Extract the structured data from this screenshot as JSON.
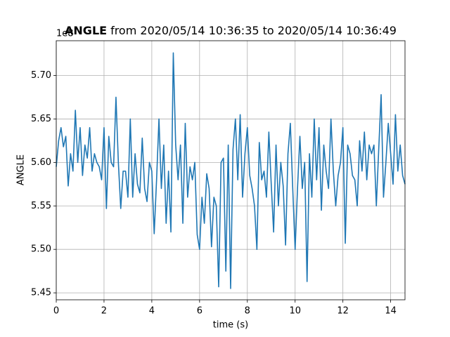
{
  "chart_data": {
    "type": "line",
    "title_parts": [
      "ANGLE",
      "from 2020/05/14 10:36:35 to 2020/05/14 10:36:49"
    ],
    "x_label": "time (s)",
    "y_label": "ANGLE",
    "y_offset_label": "1e8",
    "color": "#1f77b4",
    "grid": true,
    "xlim": [
      0,
      14.6
    ],
    "xticks": [
      0,
      2,
      4,
      6,
      8,
      10,
      12,
      14
    ],
    "ylim": [
      5.442,
      5.74
    ],
    "yticks": [
      5.45,
      {
        "value": 5.5,
        "label": "5.50"
      },
      5.55,
      {
        "value": 5.6,
        "label": "5.60"
      },
      5.65,
      {
        "value": 5.7,
        "label": "5.70"
      }
    ],
    "x": [
      0,
      0.1,
      0.2,
      0.3,
      0.4,
      0.5,
      0.6,
      0.7,
      0.8,
      0.9,
      1,
      1.1,
      1.2,
      1.3,
      1.4,
      1.5,
      1.6,
      1.7,
      1.8,
      1.9,
      2,
      2.1,
      2.2,
      2.3,
      2.4,
      2.5,
      2.6,
      2.7,
      2.8,
      2.9,
      3,
      3.1,
      3.2,
      3.3,
      3.4,
      3.5,
      3.6,
      3.7,
      3.8,
      3.9,
      4,
      4.1,
      4.2,
      4.3,
      4.4,
      4.5,
      4.6,
      4.7,
      4.8,
      4.9,
      5,
      5.1,
      5.2,
      5.3,
      5.4,
      5.5,
      5.6,
      5.7,
      5.8,
      5.9,
      6,
      6.1,
      6.2,
      6.3,
      6.4,
      6.5,
      6.6,
      6.7,
      6.8,
      6.9,
      7,
      7.1,
      7.2,
      7.3,
      7.4,
      7.5,
      7.6,
      7.7,
      7.8,
      7.9,
      8,
      8.1,
      8.2,
      8.3,
      8.4,
      8.5,
      8.6,
      8.7,
      8.8,
      8.9,
      9,
      9.1,
      9.2,
      9.3,
      9.4,
      9.5,
      9.6,
      9.7,
      9.8,
      9.9,
      10,
      10.1,
      10.2,
      10.3,
      10.4,
      10.5,
      10.6,
      10.7,
      10.8,
      10.9,
      11,
      11.1,
      11.2,
      11.3,
      11.4,
      11.5,
      11.6,
      11.7,
      11.8,
      11.9,
      12,
      12.1,
      12.2,
      12.3,
      12.4,
      12.5,
      12.6,
      12.7,
      12.8,
      12.9,
      13,
      13.1,
      13.2,
      13.3,
      13.4,
      13.5,
      13.6,
      13.7,
      13.8,
      13.9,
      14,
      14.1,
      14.2,
      14.3,
      14.4,
      14.5,
      14.6
    ],
    "values": [
      5.595,
      5.625,
      5.64,
      5.618,
      5.63,
      5.573,
      5.61,
      5.59,
      5.66,
      5.6,
      5.64,
      5.585,
      5.62,
      5.605,
      5.64,
      5.59,
      5.61,
      5.6,
      5.595,
      5.58,
      5.64,
      5.547,
      5.63,
      5.6,
      5.595,
      5.675,
      5.6,
      5.547,
      5.59,
      5.59,
      5.56,
      5.65,
      5.56,
      5.61,
      5.575,
      5.565,
      5.628,
      5.57,
      5.555,
      5.6,
      5.59,
      5.518,
      5.58,
      5.65,
      5.57,
      5.62,
      5.53,
      5.59,
      5.52,
      5.726,
      5.62,
      5.58,
      5.62,
      5.53,
      5.645,
      5.56,
      5.595,
      5.58,
      5.6,
      5.517,
      5.5,
      5.56,
      5.53,
      5.587,
      5.57,
      5.503,
      5.56,
      5.55,
      5.457,
      5.6,
      5.605,
      5.475,
      5.62,
      5.455,
      5.615,
      5.65,
      5.58,
      5.655,
      5.56,
      5.61,
      5.64,
      5.585,
      5.57,
      5.55,
      5.5,
      5.623,
      5.58,
      5.59,
      5.56,
      5.635,
      5.575,
      5.52,
      5.62,
      5.55,
      5.6,
      5.573,
      5.505,
      5.61,
      5.645,
      5.57,
      5.5,
      5.57,
      5.63,
      5.57,
      5.6,
      5.463,
      5.61,
      5.56,
      5.65,
      5.58,
      5.64,
      5.545,
      5.62,
      5.59,
      5.57,
      5.65,
      5.59,
      5.55,
      5.585,
      5.6,
      5.64,
      5.507,
      5.62,
      5.61,
      5.585,
      5.58,
      5.55,
      5.625,
      5.59,
      5.635,
      5.58,
      5.62,
      5.61,
      5.62,
      5.55,
      5.615,
      5.678,
      5.56,
      5.6,
      5.645,
      5.61,
      5.575,
      5.655,
      5.59,
      5.62,
      5.585,
      5.575
    ]
  }
}
